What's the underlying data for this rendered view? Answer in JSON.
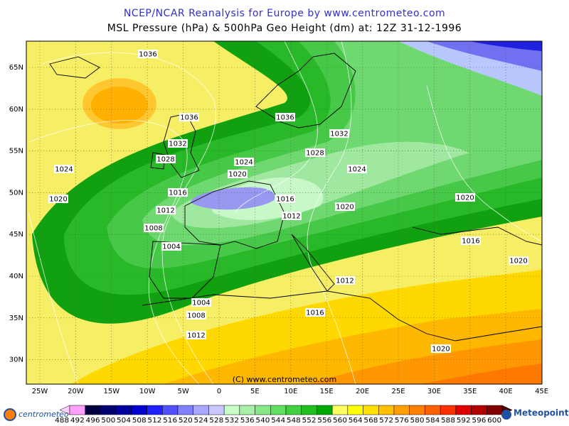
{
  "header": {
    "title": "NCEP/NCAR Reanalysis for Europe by www.centrometeo.com",
    "subtitle": "MSL Pressure (hPa) & 500hPa Geo Height (dm) at: 12Z 31-12-1996"
  },
  "map": {
    "lat_labels": [
      "65N",
      "60N",
      "55N",
      "50N",
      "45N",
      "40N",
      "35N",
      "30N"
    ],
    "lon_labels": [
      "25W",
      "20W",
      "15W",
      "10W",
      "5W",
      "0",
      "5E",
      "10E",
      "15E",
      "20E",
      "25E",
      "30E",
      "35E",
      "40E",
      "45E"
    ],
    "isobar_labels": [
      "1036",
      "1036",
      "1036",
      "1032",
      "1032",
      "1028",
      "1028",
      "1024",
      "1024",
      "1024",
      "1020",
      "1020",
      "1020",
      "1020",
      "1016",
      "1016",
      "1016",
      "1012",
      "1012",
      "1008",
      "1004",
      "1020",
      "1012",
      "1004",
      "1008",
      "1016",
      "1012",
      "1020"
    ],
    "copyright": "(C) www.centrometeo.com"
  },
  "colorbar": {
    "labels": [
      "488",
      "492",
      "496",
      "500",
      "504",
      "508",
      "512",
      "516",
      "520",
      "524",
      "528",
      "532",
      "536",
      "540",
      "544",
      "548",
      "552",
      "556",
      "560",
      "564",
      "568",
      "572",
      "576",
      "580",
      "584",
      "588",
      "592",
      "596",
      "600"
    ],
    "colors": [
      "#ffd0ff",
      "#ffa0ff",
      "#000040",
      "#000070",
      "#0000a0",
      "#0000d0",
      "#2020ff",
      "#5050ff",
      "#8080ff",
      "#a8a8ff",
      "#c8c8ff",
      "#c8ffc8",
      "#a8f0a8",
      "#88e888",
      "#60e060",
      "#40d040",
      "#20c020",
      "#00a800",
      "#ffff60",
      "#ffff00",
      "#ffe000",
      "#ffc000",
      "#ffa000",
      "#ff8000",
      "#ff6000",
      "#ff3000",
      "#e00000",
      "#b00000",
      "#800000",
      "#500000"
    ]
  },
  "logos": {
    "left": "centrometeo",
    "right": "Meteopoint"
  }
}
